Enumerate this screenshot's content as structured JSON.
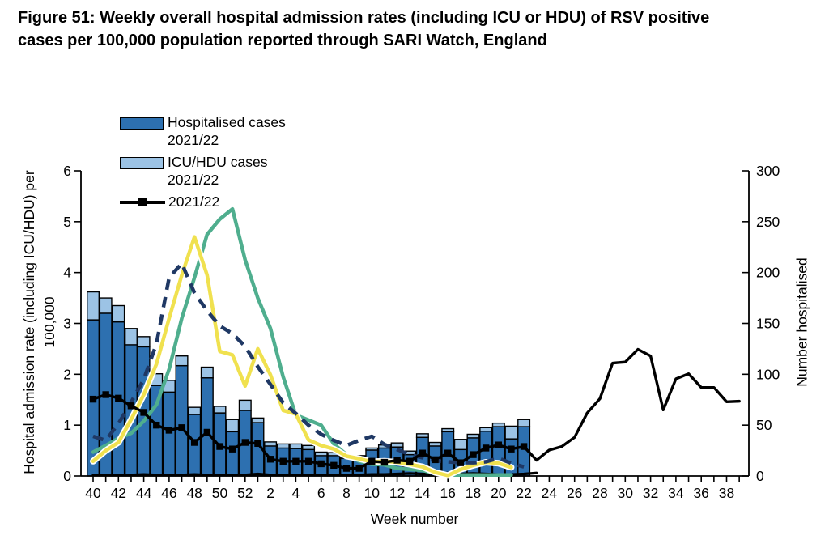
{
  "title": "Figure 51: Weekly overall hospital admission rates (including ICU or HDU) of RSV positive cases per 100,000 population reported through SARI Watch, England",
  "legend": {
    "items": [
      {
        "line1": "Hospitalised cases",
        "line2": "2021/22",
        "swatch": "bar_dark"
      },
      {
        "line1": "ICU/HDU cases",
        "line2": "2021/22",
        "swatch": "bar_light"
      },
      {
        "line1": "2021/22",
        "line2": "",
        "swatch": "line_marker"
      }
    ]
  },
  "axes": {
    "left": {
      "title_line1": "Hospital admission rate (including ICU/HDU) per",
      "title_line2": "100,000",
      "ticks": [
        0,
        1,
        2,
        3,
        4,
        5,
        6
      ],
      "range": [
        0,
        6
      ]
    },
    "right": {
      "title": "Number hospitalised",
      "ticks": [
        0,
        50,
        100,
        150,
        200,
        250,
        300
      ],
      "range": [
        0,
        300
      ]
    },
    "x": {
      "title": "Week number",
      "tick_labels": [
        40,
        42,
        44,
        46,
        48,
        50,
        52,
        2,
        4,
        6,
        8,
        10,
        12,
        14,
        16,
        18,
        20,
        22,
        24,
        26,
        28,
        30,
        32,
        34,
        36,
        38
      ]
    }
  },
  "colors": {
    "bar_dark": "#2D70B0",
    "bar_light": "#9CC3E5",
    "navy": "#1F3864",
    "green": "#4FAE8E",
    "yellow": "#F0E14F",
    "black": "#000000",
    "white": "#FFFFFF"
  },
  "chart_data": {
    "type": "bar+line combo",
    "title": "Weekly overall hospital admission rates of RSV positive cases per 100,000 population, SARI Watch, England",
    "xlabel": "Week number",
    "ylabel_left": "Hospital admission rate (including ICU/HDU) per 100,000",
    "ylabel_right": "Number hospitalised",
    "ylim_left": [
      0,
      6
    ],
    "ylim_right": [
      0,
      300
    ],
    "grid": false,
    "legend_position": "top-left inside",
    "x_weeks": [
      40,
      41,
      42,
      43,
      44,
      45,
      46,
      47,
      48,
      49,
      50,
      51,
      52,
      1,
      2,
      3,
      4,
      5,
      6,
      7,
      8,
      9,
      10,
      11,
      12,
      13,
      14,
      15,
      16,
      17,
      18,
      19,
      20,
      21,
      22,
      23,
      24,
      25,
      26,
      27,
      28,
      29,
      30,
      31,
      32,
      33,
      34,
      35,
      36,
      37,
      38,
      39
    ],
    "series": [
      {
        "id": "hospitalised",
        "label": "Hospitalised cases 2021/22",
        "type": "bar",
        "axis": "left",
        "color_key": "bar_dark",
        "values": [
          3.07,
          3.2,
          3.03,
          2.58,
          2.54,
          1.78,
          1.65,
          2.17,
          1.21,
          1.93,
          1.24,
          0.87,
          1.29,
          1.05,
          0.59,
          0.55,
          0.54,
          0.52,
          0.4,
          0.4,
          0.35,
          0.35,
          0.51,
          0.55,
          0.57,
          0.42,
          0.76,
          0.59,
          0.87,
          0.52,
          0.75,
          0.88,
          0.97,
          0.73,
          0.97,
          null,
          null,
          null,
          null,
          null,
          null,
          null,
          null,
          null,
          null,
          null,
          null,
          null,
          null,
          null,
          null,
          null
        ]
      },
      {
        "id": "icu_hdu",
        "label": "ICU/HDU cases 2021/22",
        "type": "bar-stacked",
        "axis": "left",
        "color_key": "bar_light",
        "values": [
          0.55,
          0.3,
          0.32,
          0.32,
          0.2,
          0.23,
          0.23,
          0.19,
          0.14,
          0.21,
          0.13,
          0.24,
          0.2,
          0.09,
          0.08,
          0.08,
          0.09,
          0.08,
          0.07,
          0.06,
          0.04,
          0.05,
          0.04,
          0.06,
          0.08,
          0.07,
          0.07,
          0.07,
          0.06,
          0.2,
          0.07,
          0.07,
          0.07,
          0.25,
          0.14,
          null,
          null,
          null,
          null,
          null,
          null,
          null,
          null,
          null,
          null,
          null,
          null,
          null,
          null,
          null,
          null,
          null
        ]
      },
      {
        "id": "rate_2021_22",
        "label": "2021/22",
        "type": "line-markers",
        "axis": "left",
        "color_key": "black",
        "marker_last_index": 34,
        "values": [
          1.51,
          1.6,
          1.53,
          1.38,
          1.25,
          1.0,
          0.9,
          0.95,
          0.66,
          0.86,
          0.58,
          0.53,
          0.66,
          0.64,
          0.33,
          0.29,
          0.29,
          0.29,
          0.24,
          0.21,
          0.15,
          0.15,
          0.29,
          0.27,
          0.31,
          0.29,
          0.45,
          0.32,
          0.45,
          0.26,
          0.42,
          0.55,
          0.61,
          0.53,
          0.58,
          0.31,
          0.51,
          0.58,
          0.76,
          1.24,
          1.52,
          2.22,
          2.24,
          2.49,
          2.36,
          1.3,
          1.91,
          2.01,
          1.74,
          1.74,
          1.46,
          1.47
        ]
      },
      {
        "id": "comparison_near_zero",
        "label": "",
        "type": "line",
        "axis": "left",
        "color_key": "black",
        "values": [
          0.02,
          0.02,
          0.02,
          0.02,
          0.03,
          0.02,
          0.02,
          0.02,
          0.03,
          0.02,
          0.02,
          0.02,
          0.02,
          0.04,
          0.02,
          0.02,
          0.02,
          0.02,
          0.02,
          0.02,
          0.02,
          0.02,
          0.03,
          0.03,
          0.04,
          0.05,
          0.04,
          0.05,
          0.06,
          0.04,
          0.05,
          0.04,
          0.03,
          0.03,
          0.04,
          0.06,
          null,
          null,
          null,
          null,
          null,
          null,
          null,
          null,
          null,
          null,
          null,
          null,
          null,
          null,
          null,
          null
        ]
      },
      {
        "id": "comparison_dashed",
        "label": "",
        "type": "line-dashed",
        "axis": "left",
        "color_key": "navy",
        "values": [
          0.78,
          0.7,
          1.03,
          1.45,
          1.9,
          2.6,
          3.9,
          4.18,
          3.6,
          3.25,
          2.95,
          2.8,
          2.55,
          2.15,
          1.8,
          1.44,
          1.23,
          1.0,
          0.82,
          0.7,
          0.6,
          0.7,
          0.78,
          0.62,
          0.52,
          0.42,
          0.36,
          0.3,
          0.28,
          0.26,
          0.26,
          0.28,
          0.35,
          0.25,
          0.18,
          null,
          null,
          null,
          null,
          null,
          null,
          null,
          null,
          null,
          null,
          null,
          null,
          null,
          null,
          null,
          null,
          null
        ]
      },
      {
        "id": "comparison_green",
        "label": "",
        "type": "line",
        "axis": "left",
        "color_key": "green",
        "values": [
          0.47,
          0.6,
          0.74,
          0.84,
          1.08,
          1.4,
          2.1,
          3.1,
          3.9,
          4.75,
          5.05,
          5.25,
          4.25,
          3.5,
          2.9,
          1.95,
          1.2,
          1.1,
          1.0,
          0.63,
          0.42,
          0.29,
          0.23,
          0.22,
          0.15,
          0.13,
          0.11,
          0.05,
          0.02,
          0.02,
          0.02,
          0.02,
          0.02,
          0.02,
          null,
          null,
          null,
          null,
          null,
          null,
          null,
          null,
          null,
          null,
          null,
          null,
          null,
          null,
          null,
          null,
          null,
          null
        ]
      },
      {
        "id": "comparison_yellow",
        "label": "",
        "type": "line-cased",
        "axis": "left",
        "color_key": "yellow",
        "values": [
          0.29,
          0.5,
          0.66,
          1.11,
          1.6,
          2.2,
          3.1,
          3.95,
          4.7,
          3.95,
          2.45,
          2.38,
          1.77,
          2.5,
          1.99,
          1.29,
          1.22,
          0.71,
          0.6,
          0.53,
          0.39,
          0.34,
          0.28,
          0.29,
          0.27,
          0.23,
          0.18,
          0.07,
          0.01,
          0.13,
          0.21,
          0.27,
          0.25,
          0.17,
          null,
          null,
          null,
          null,
          null,
          null,
          null,
          null,
          null,
          null,
          null,
          null,
          null,
          null,
          null,
          null,
          null,
          null
        ]
      }
    ]
  }
}
